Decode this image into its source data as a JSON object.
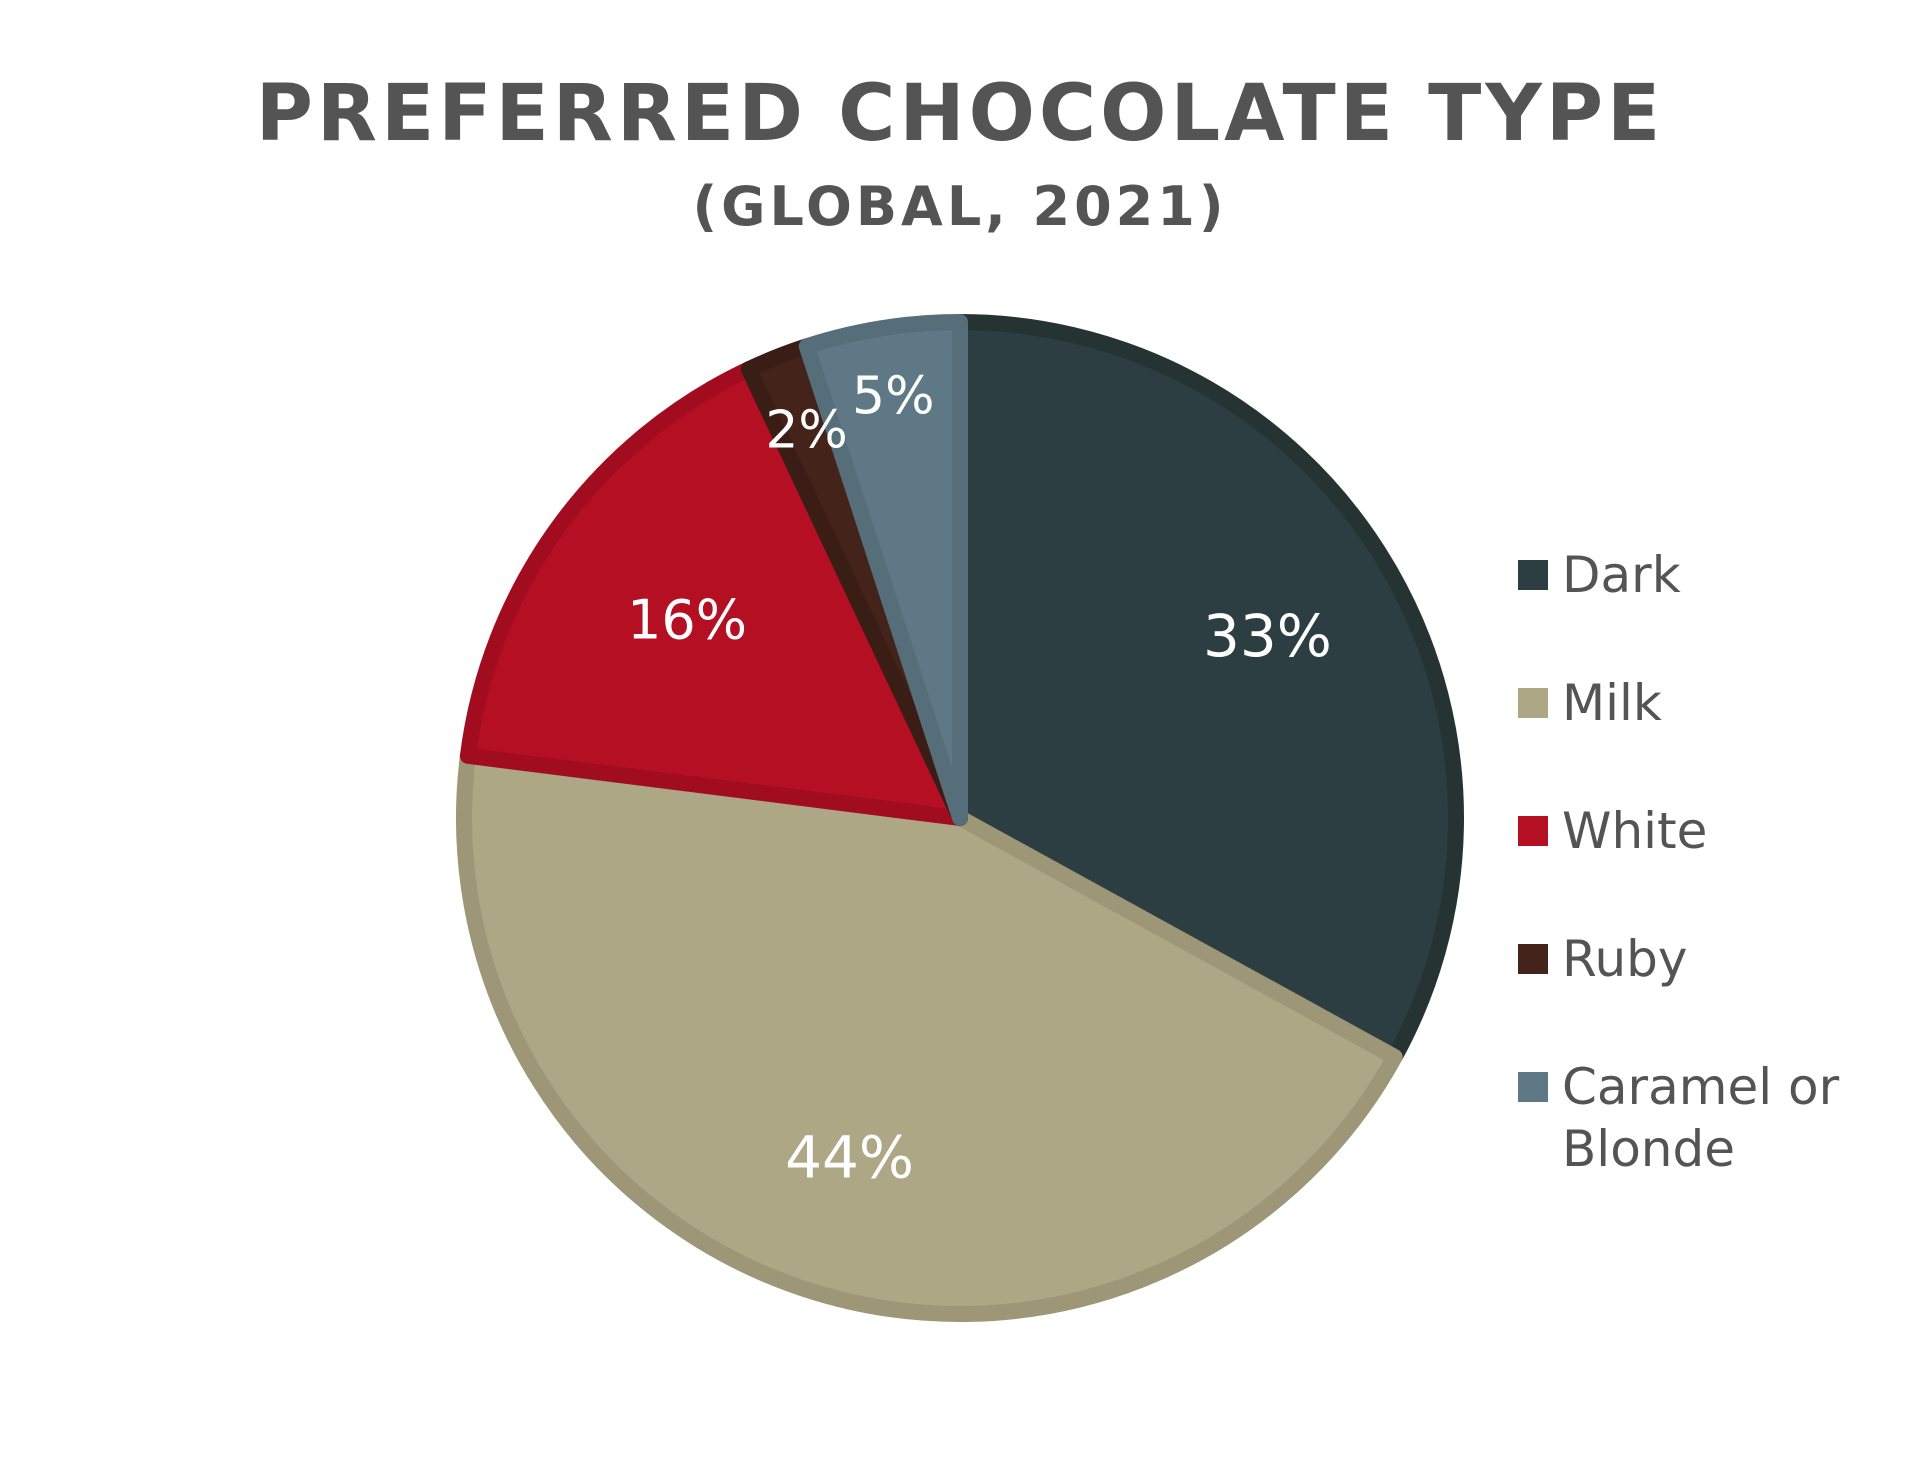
{
  "chart_data": {
    "type": "pie",
    "title": "PREFERRED CHOCOLATE TYPE",
    "subtitle": "(GLOBAL, 2021)",
    "legend_position": "right",
    "slices": [
      {
        "name": "Dark",
        "value": 33,
        "label": "33%",
        "color": "#2c3e41",
        "border": "#253432"
      },
      {
        "name": "Milk",
        "value": 44,
        "label": "44%",
        "color": "#ada786",
        "border": "#9d9677"
      },
      {
        "name": "White",
        "value": 16,
        "label": "16%",
        "color": "#b40f22",
        "border": "#a10d1e"
      },
      {
        "name": "Ruby",
        "value": 2,
        "label": "2%",
        "color": "#44231a",
        "border": "#3a1d15"
      },
      {
        "name": "Caramel or Blonde",
        "value": 5,
        "label": "5%",
        "color": "#5f7886",
        "border": "#566d7a"
      }
    ],
    "legend": [
      {
        "lines": [
          "Dark"
        ],
        "color": "#2c3e41"
      },
      {
        "lines": [
          "Milk"
        ],
        "color": "#ada786"
      },
      {
        "lines": [
          "White"
        ],
        "color": "#b40f22"
      },
      {
        "lines": [
          "Ruby"
        ],
        "color": "#44231a"
      },
      {
        "lines": [
          "Caramel or",
          "Blonde"
        ],
        "color": "#5f7886"
      }
    ]
  },
  "colors": {
    "title": "#545454",
    "legend_text": "#545454",
    "slice_label": "#ffffff"
  }
}
